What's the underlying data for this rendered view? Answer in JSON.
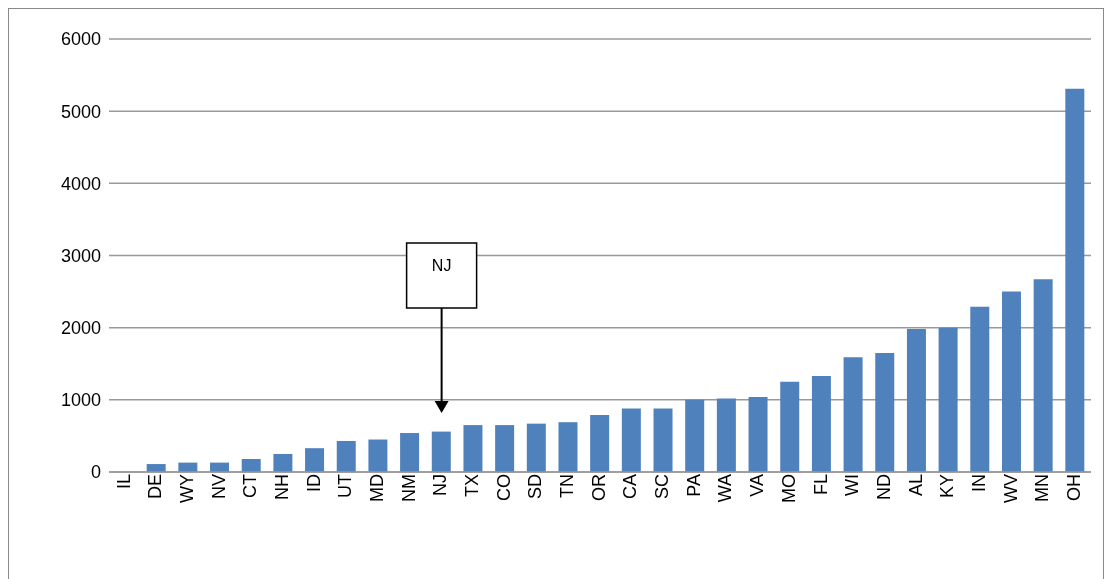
{
  "chart_data": {
    "type": "bar",
    "categories": [
      "IL",
      "DE",
      "WY",
      "NV",
      "CT",
      "NH",
      "ID",
      "UT",
      "MD",
      "NM",
      "NJ",
      "TX",
      "CO",
      "SD",
      "TN",
      "OR",
      "CA",
      "SC",
      "PA",
      "WA",
      "VA",
      "MO",
      "FL",
      "WI",
      "ND",
      "AL",
      "KY",
      "IN",
      "WV",
      "MN",
      "OH"
    ],
    "values": [
      0,
      110,
      130,
      130,
      180,
      250,
      330,
      430,
      450,
      540,
      560,
      650,
      650,
      670,
      690,
      790,
      880,
      880,
      1000,
      1020,
      1040,
      1250,
      1330,
      1590,
      1650,
      1980,
      2000,
      2290,
      2500,
      2670,
      5310
    ],
    "color": "#4f81bd",
    "ylim": [
      0,
      6000
    ],
    "yticks": [
      0,
      1000,
      2000,
      3000,
      4000,
      5000,
      6000
    ],
    "grid": "y",
    "annotations": [
      "NJ"
    ]
  }
}
